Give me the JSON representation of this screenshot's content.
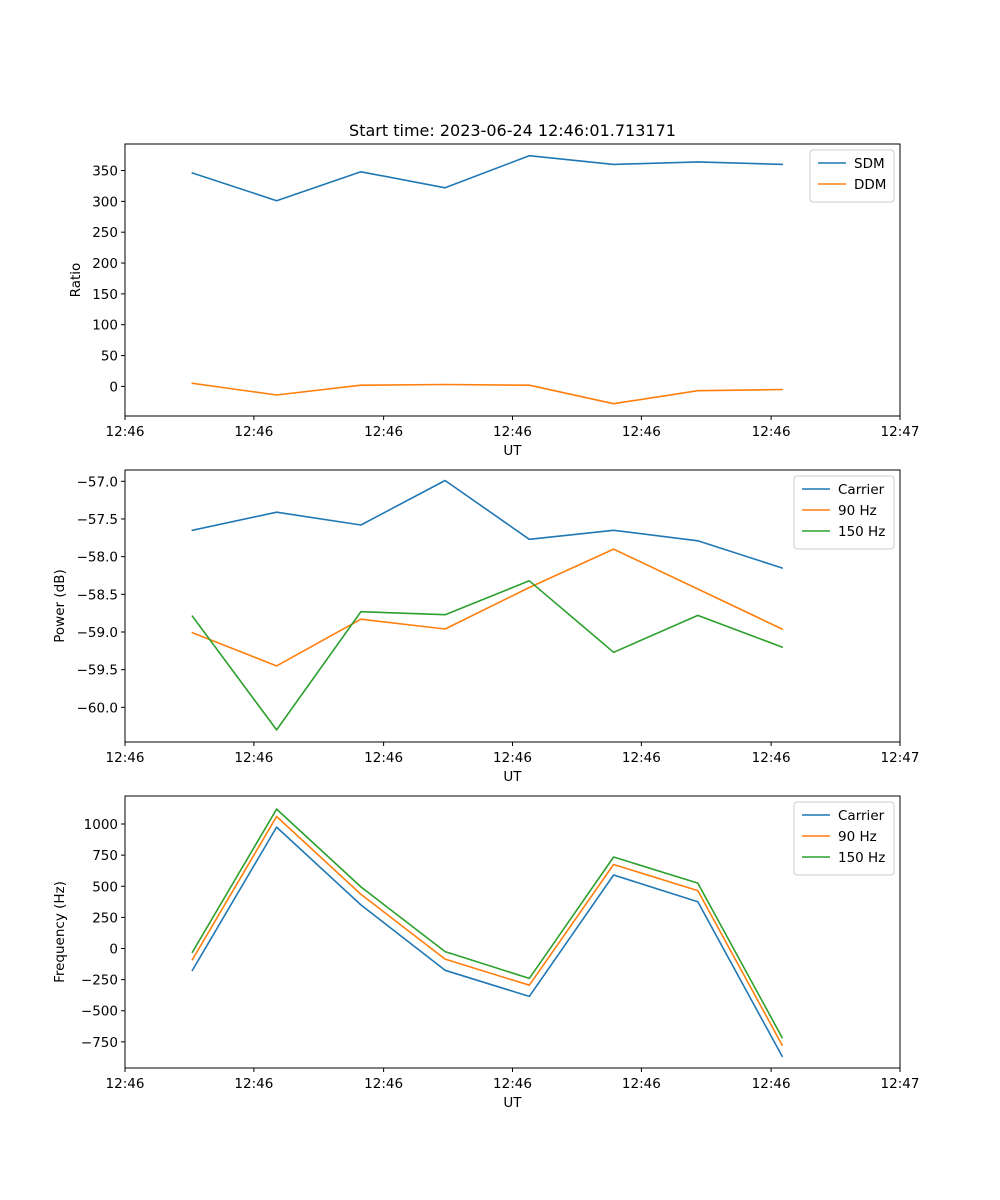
{
  "figure_title": "Start time: 2023-06-24 12:46:01.713171",
  "colors": {
    "blue": "#1f77b4",
    "orange": "#ff7f0e",
    "green": "#2ca02c"
  },
  "chart_data": [
    {
      "type": "line",
      "title": "Start time: 2023-06-24 12:46:01.713171",
      "xlabel": "UT",
      "ylabel": "Ratio",
      "x": [
        1,
        2,
        3,
        4,
        5,
        6,
        7,
        8
      ],
      "xlim": [
        0.2,
        9.4
      ],
      "x_ticks": [
        0.2,
        1.73,
        3.27,
        4.8,
        6.33,
        7.87,
        9.4
      ],
      "x_tick_labels": [
        "12:46",
        "12:46",
        "12:46",
        "12:46",
        "12:46",
        "12:46",
        "12:47"
      ],
      "ylim": [
        -48,
        393
      ],
      "y_ticks": [
        0,
        50,
        100,
        150,
        200,
        250,
        300,
        350
      ],
      "y_tick_labels": [
        "0",
        "50",
        "100",
        "150",
        "200",
        "250",
        "300",
        "350"
      ],
      "series": [
        {
          "name": "SDM",
          "color": "#1f77b4",
          "values": [
            346,
            301,
            348,
            322,
            374,
            360,
            364,
            360
          ]
        },
        {
          "name": "DDM",
          "color": "#ff7f0e",
          "values": [
            5,
            -14,
            2,
            3,
            2,
            -28,
            -7,
            -5
          ]
        }
      ],
      "legend": "top-right",
      "grid": false
    },
    {
      "type": "line",
      "title": "",
      "xlabel": "UT",
      "ylabel": "Power (dB)",
      "x": [
        1,
        2,
        3,
        4,
        5,
        6,
        7,
        8
      ],
      "xlim": [
        0.2,
        9.4
      ],
      "x_ticks": [
        0.2,
        1.73,
        3.27,
        4.8,
        6.33,
        7.87,
        9.4
      ],
      "x_tick_labels": [
        "12:46",
        "12:46",
        "12:46",
        "12:46",
        "12:46",
        "12:46",
        "12:47"
      ],
      "ylim": [
        -60.46,
        -56.85
      ],
      "y_ticks": [
        -60.0,
        -59.5,
        -59.0,
        -58.5,
        -58.0,
        -57.5,
        -57.0
      ],
      "y_tick_labels": [
        "−60.0",
        "−59.5",
        "−59.0",
        "−58.5",
        "−58.0",
        "−57.5",
        "−57.0"
      ],
      "series": [
        {
          "name": "Carrier",
          "color": "#1f77b4",
          "values": [
            -57.65,
            -57.41,
            -57.58,
            -56.99,
            -57.77,
            -57.65,
            -57.79,
            -58.15
          ]
        },
        {
          "name": "90 Hz",
          "color": "#ff7f0e",
          "values": [
            -59.01,
            -59.45,
            -58.83,
            -58.96,
            -58.41,
            -57.9,
            -58.43,
            -58.96
          ]
        },
        {
          "name": "150 Hz",
          "color": "#2ca02c",
          "values": [
            -58.79,
            -60.3,
            -58.73,
            -58.77,
            -58.32,
            -59.27,
            -58.78,
            -59.2
          ]
        }
      ],
      "legend": "top-right",
      "grid": false
    },
    {
      "type": "line",
      "title": "",
      "xlabel": "UT",
      "ylabel": "Frequency (Hz)",
      "x": [
        1,
        2,
        3,
        4,
        5,
        6,
        7,
        8
      ],
      "xlim": [
        0.2,
        9.4
      ],
      "x_ticks": [
        0.2,
        1.73,
        3.27,
        4.8,
        6.33,
        7.87,
        9.4
      ],
      "x_tick_labels": [
        "12:46",
        "12:46",
        "12:46",
        "12:46",
        "12:46",
        "12:46",
        "12:47"
      ],
      "ylim": [
        -960,
        1225
      ],
      "y_ticks": [
        -750,
        -500,
        -250,
        0,
        250,
        500,
        750,
        1000
      ],
      "y_tick_labels": [
        "−750",
        "−500",
        "−250",
        "0",
        "250",
        "500",
        "750",
        "1000"
      ],
      "series": [
        {
          "name": "Carrier",
          "color": "#1f77b4",
          "values": [
            -175,
            975,
            350,
            -175,
            -385,
            590,
            375,
            -865
          ]
        },
        {
          "name": "90 Hz",
          "color": "#ff7f0e",
          "values": [
            -90,
            1060,
            435,
            -85,
            -295,
            675,
            465,
            -775
          ]
        },
        {
          "name": "150 Hz",
          "color": "#2ca02c",
          "values": [
            -30,
            1120,
            495,
            -25,
            -240,
            735,
            525,
            -715
          ]
        }
      ],
      "legend": "top-right",
      "grid": false
    }
  ]
}
